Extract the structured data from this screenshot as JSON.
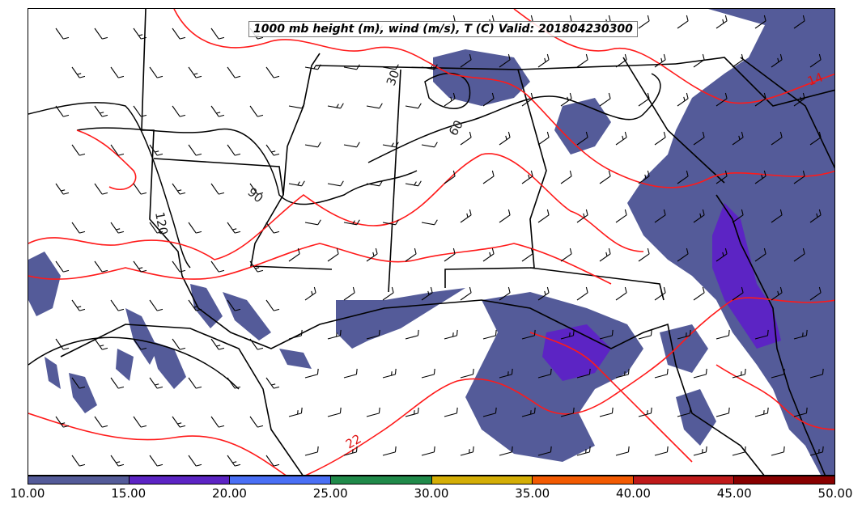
{
  "title": "1000 mb height (m), wind (m/s), T (C) Valid: 201804230300",
  "colorbar": {
    "labels": [
      "10.00",
      "15.00",
      "20.00",
      "25.00",
      "30.00",
      "35.00",
      "40.00",
      "45.00",
      "50.00"
    ],
    "colors": [
      "#545b99",
      "#5c24c4",
      "#4a6ff5",
      "#208a4a",
      "#d4ae06",
      "#f25a02",
      "#bf1a1a",
      "#880000",
      "#ee2e98"
    ]
  },
  "height_contour_labels": [
    "30",
    "60",
    "90",
    "120"
  ],
  "temperature_contour_labels": [
    "14",
    "22"
  ],
  "colors": {
    "height_contour": "#000000",
    "temperature_contour": "#ff1a1a",
    "precip_shading": "#545b99",
    "precip_heavy": "#5c24c4"
  }
}
